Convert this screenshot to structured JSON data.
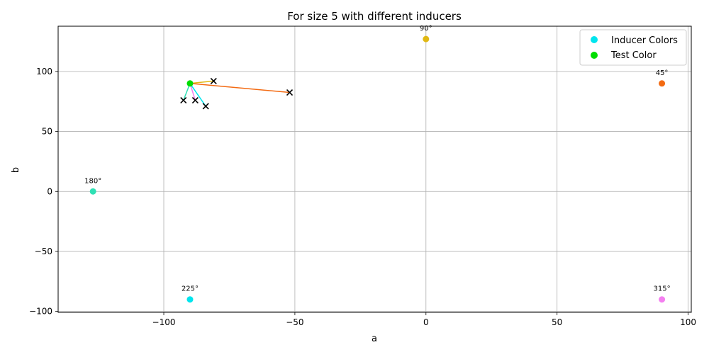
{
  "chart_data": {
    "type": "scatter",
    "title": "For size 5 with different inducers",
    "xlabel": "a",
    "ylabel": "b",
    "xlim": [
      -140.3,
      101.2
    ],
    "ylim": [
      -100.8,
      137.7
    ],
    "xticks": [
      -100,
      -50,
      0,
      50,
      100
    ],
    "yticks": [
      -100,
      -50,
      0,
      50,
      100
    ],
    "xtick_labels": [
      "−100",
      "−50",
      "0",
      "50",
      "100"
    ],
    "ytick_labels": [
      "−100",
      "−50",
      "0",
      "50",
      "100"
    ],
    "grid": true,
    "legend_position": "top-right",
    "legend": [
      {
        "label": "Inducer Colors",
        "color": "#00e5ee"
      },
      {
        "label": "Test Color",
        "color": "#00dd00"
      }
    ],
    "inducers": [
      {
        "label": "90°",
        "a": 0,
        "b": 127,
        "color": "#e0b814"
      },
      {
        "label": "45°",
        "a": 90,
        "b": 90,
        "color": "#f36a12"
      },
      {
        "label": "180°",
        "a": -127,
        "b": 0,
        "color": "#2ee0b4"
      },
      {
        "label": "225°",
        "a": -90,
        "b": -90,
        "color": "#00e5ee"
      },
      {
        "label": "315°",
        "a": 90,
        "b": -90,
        "color": "#f47ff0"
      }
    ],
    "test_color": {
      "a": -90,
      "b": 90,
      "color": "#00dd00"
    },
    "shift_markers": [
      {
        "a": -81,
        "b": 92,
        "line_color": "#e0b814"
      },
      {
        "a": -52,
        "b": 82.5,
        "line_color": "#f36a12"
      },
      {
        "a": -92.5,
        "b": 76,
        "line_color": "#2ee0b4"
      },
      {
        "a": -88,
        "b": 76,
        "line_color": "#f47ff0"
      },
      {
        "a": -84,
        "b": 71,
        "line_color": "#00e5ee"
      }
    ]
  }
}
